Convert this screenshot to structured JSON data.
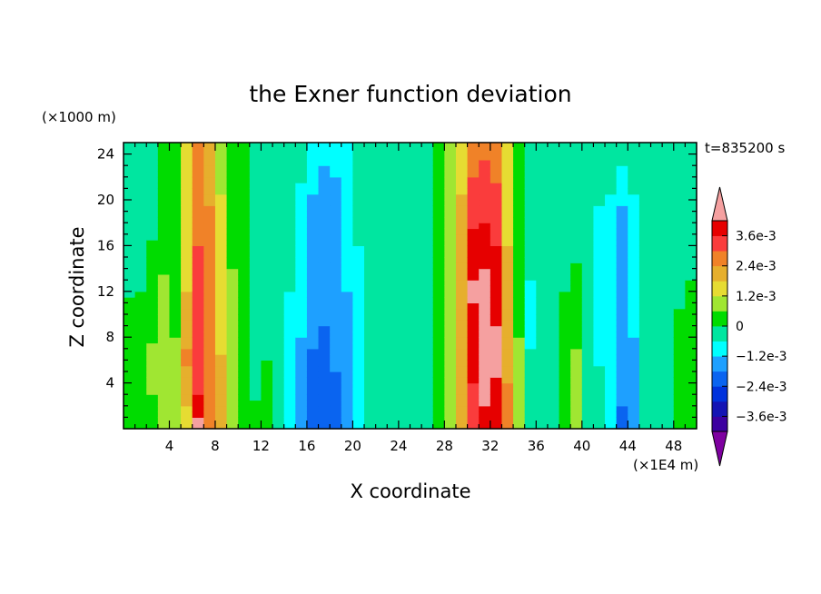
{
  "chart_data": {
    "type": "heatmap",
    "title": "the Exner function deviation",
    "xlabel": "X coordinate",
    "ylabel": "Z coordinate",
    "x_unit": "(×1E4 m)",
    "y_unit": "(×1000 m)",
    "time_label": "t=835200 s",
    "xlim": [
      0,
      50
    ],
    "ylim": [
      0,
      25
    ],
    "x_ticks": [
      "4",
      "8",
      "12",
      "16",
      "20",
      "24",
      "28",
      "32",
      "36",
      "40",
      "44",
      "48"
    ],
    "y_ticks": [
      "4",
      "8",
      "12",
      "16",
      "20",
      "24"
    ],
    "colorbar": {
      "levels": [
        -0.0042,
        -0.0036,
        -0.003,
        -0.0024,
        -0.0018,
        -0.0012,
        -0.0006,
        0,
        0.0006,
        0.0012,
        0.0018,
        0.0024,
        0.003,
        0.0036,
        0.0042
      ],
      "colors": [
        "#7e00a0",
        "#3c00a0",
        "#1414b4",
        "#0032dc",
        "#0a64f0",
        "#1ea0ff",
        "#00ffff",
        "#00e6a0",
        "#00dc00",
        "#a0e632",
        "#e6dc32",
        "#e6af2d",
        "#f08228",
        "#fa3c3c",
        "#e60000",
        "#f5a0a0"
      ],
      "labels": [
        "3.6e-3",
        "2.4e-3",
        "1.2e-3",
        "0",
        "−1.2e-3",
        "−2.4e-3",
        "−3.6e-3"
      ],
      "label_values": [
        0.0036,
        0.0024,
        0.0012,
        0,
        -0.0012,
        -0.0024,
        -0.0036
      ]
    },
    "columns": [
      {
        "x": 0.5,
        "profile": [
          [
            0,
            0.0002
          ],
          [
            4,
            0.0001
          ],
          [
            10,
            0.0001
          ],
          [
            16,
            -0.0003
          ],
          [
            25,
            -0.0002
          ]
        ]
      },
      {
        "x": 1.5,
        "profile": [
          [
            0,
            0.0004
          ],
          [
            8,
            0.0002
          ],
          [
            14,
            -0.0001
          ],
          [
            25,
            -0.0002
          ]
        ]
      },
      {
        "x": 2.5,
        "profile": [
          [
            0,
            0.0005
          ],
          [
            6,
            0.0007
          ],
          [
            12,
            0.0003
          ],
          [
            18,
            -0.0001
          ],
          [
            25,
            -0.0002
          ]
        ]
      },
      {
        "x": 3.5,
        "profile": [
          [
            0,
            0.0006
          ],
          [
            6,
            0.0012
          ],
          [
            12,
            0.0009
          ],
          [
            16,
            0.0
          ],
          [
            25,
            0.0001
          ]
        ]
      },
      {
        "x": 4.5,
        "profile": [
          [
            0,
            0.0008
          ],
          [
            8,
            0.0006
          ],
          [
            16,
            0.0003
          ],
          [
            25,
            0.0003
          ]
        ]
      },
      {
        "x": 5.5,
        "profile": [
          [
            0,
            0.0015
          ],
          [
            6,
            0.0025
          ],
          [
            12,
            0.0018
          ],
          [
            20,
            0.0014
          ],
          [
            25,
            0.0012
          ]
        ]
      },
      {
        "x": 6.5,
        "profile": [
          [
            0,
            0.0044
          ],
          [
            4,
            0.0034
          ],
          [
            8,
            0.0032
          ],
          [
            16,
            0.003
          ],
          [
            25,
            0.0024
          ]
        ]
      },
      {
        "x": 7.5,
        "profile": [
          [
            0,
            0.0026
          ],
          [
            8,
            0.0026
          ],
          [
            16,
            0.0026
          ],
          [
            25,
            0.0021
          ]
        ]
      },
      {
        "x": 8.5,
        "profile": [
          [
            0,
            0.0022
          ],
          [
            8,
            0.0017
          ],
          [
            16,
            0.0014
          ],
          [
            25,
            0.001
          ]
        ]
      },
      {
        "x": 9.5,
        "profile": [
          [
            0,
            0.0012
          ],
          [
            8,
            0.0009
          ],
          [
            16,
            0.0005
          ],
          [
            25,
            0.0004
          ]
        ]
      },
      {
        "x": 10.5,
        "profile": [
          [
            0,
            0.0004
          ],
          [
            8,
            0.0002
          ],
          [
            16,
            0.0
          ],
          [
            25,
            0.0001
          ]
        ]
      },
      {
        "x": 11.5,
        "profile": [
          [
            0,
            0.0001
          ],
          [
            8,
            -0.0002
          ],
          [
            16,
            -0.0004
          ],
          [
            25,
            -0.0003
          ]
        ]
      },
      {
        "x": 12.5,
        "profile": [
          [
            0,
            0.0003
          ],
          [
            6,
            0.0
          ],
          [
            12,
            -0.0005
          ],
          [
            25,
            -0.0004
          ]
        ]
      },
      {
        "x": 13.5,
        "profile": [
          [
            0,
            -0.0002
          ],
          [
            8,
            -0.0004
          ],
          [
            16,
            -0.0005
          ],
          [
            25,
            -0.0004
          ]
        ]
      },
      {
        "x": 14.5,
        "profile": [
          [
            0,
            -0.0006
          ],
          [
            6,
            -0.0009
          ],
          [
            12,
            -0.0006
          ],
          [
            25,
            -0.0005
          ]
        ]
      },
      {
        "x": 15.5,
        "profile": [
          [
            0,
            -0.0014
          ],
          [
            8,
            -0.0012
          ],
          [
            14,
            -0.001
          ],
          [
            18,
            -0.0007
          ],
          [
            25,
            -0.0005
          ]
        ]
      },
      {
        "x": 16.5,
        "profile": [
          [
            0,
            -0.002
          ],
          [
            6,
            -0.0019
          ],
          [
            12,
            -0.0014
          ],
          [
            20,
            -0.0013
          ],
          [
            25,
            -0.0006
          ]
        ]
      },
      {
        "x": 17.5,
        "profile": [
          [
            0,
            -0.0022
          ],
          [
            6,
            -0.0021
          ],
          [
            12,
            -0.0015
          ],
          [
            22,
            -0.0014
          ],
          [
            25,
            -0.0007
          ]
        ]
      },
      {
        "x": 18.5,
        "profile": [
          [
            0,
            -0.0021
          ],
          [
            8,
            -0.0016
          ],
          [
            16,
            -0.0014
          ],
          [
            21,
            -0.0013
          ],
          [
            25,
            -0.0008
          ]
        ]
      },
      {
        "x": 19.5,
        "profile": [
          [
            0,
            -0.0015
          ],
          [
            8,
            -0.0013
          ],
          [
            16,
            -0.0011
          ],
          [
            25,
            -0.0006
          ]
        ]
      },
      {
        "x": 20.5,
        "profile": [
          [
            0,
            -0.0008
          ],
          [
            8,
            -0.0007
          ],
          [
            16,
            -0.0006
          ],
          [
            25,
            -0.0004
          ]
        ]
      },
      {
        "x": 21.5,
        "profile": [
          [
            0,
            -0.0005
          ],
          [
            8,
            -0.0004
          ],
          [
            16,
            -0.0005
          ],
          [
            25,
            -0.0003
          ]
        ]
      },
      {
        "x": 22.5,
        "profile": [
          [
            0,
            -0.0002
          ],
          [
            8,
            -0.0003
          ],
          [
            16,
            -0.0004
          ],
          [
            25,
            -0.0003
          ]
        ]
      },
      {
        "x": 23.5,
        "profile": [
          [
            0,
            -0.0001
          ],
          [
            8,
            -0.0002
          ],
          [
            16,
            -0.0003
          ],
          [
            25,
            -0.0002
          ]
        ]
      },
      {
        "x": 24.5,
        "profile": [
          [
            0,
            -0.0001
          ],
          [
            8,
            -0.0001
          ],
          [
            16,
            -0.0002
          ],
          [
            25,
            -0.0002
          ]
        ]
      },
      {
        "x": 25.5,
        "profile": [
          [
            0,
            -0.0001
          ],
          [
            8,
            -0.0002
          ],
          [
            16,
            -0.0002
          ],
          [
            25,
            -0.0002
          ]
        ]
      },
      {
        "x": 26.5,
        "profile": [
          [
            0,
            -0.0001
          ],
          [
            8,
            -0.0001
          ],
          [
            16,
            -0.0001
          ],
          [
            25,
            -0.0001
          ]
        ]
      },
      {
        "x": 27.5,
        "profile": [
          [
            0,
            0.0002
          ],
          [
            8,
            0.0002
          ],
          [
            16,
            0.0001
          ],
          [
            25,
            0.0001
          ]
        ]
      },
      {
        "x": 28.5,
        "profile": [
          [
            0,
            0.0012
          ],
          [
            8,
            0.0011
          ],
          [
            16,
            0.0008
          ],
          [
            25,
            0.0007
          ]
        ]
      },
      {
        "x": 29.5,
        "profile": [
          [
            0,
            0.0024
          ],
          [
            8,
            0.0022
          ],
          [
            16,
            0.002
          ],
          [
            25,
            0.0016
          ]
        ]
      },
      {
        "x": 30.5,
        "profile": [
          [
            0,
            0.0032
          ],
          [
            6,
            0.0038
          ],
          [
            12,
            0.0043
          ],
          [
            18,
            0.0035
          ],
          [
            25,
            0.0026
          ]
        ]
      },
      {
        "x": 31.5,
        "profile": [
          [
            0,
            0.004
          ],
          [
            6,
            0.0046
          ],
          [
            12,
            0.0045
          ],
          [
            18,
            0.0036
          ],
          [
            25,
            0.0028
          ]
        ]
      },
      {
        "x": 32.5,
        "profile": [
          [
            0,
            0.0036
          ],
          [
            6,
            0.0044
          ],
          [
            12,
            0.004
          ],
          [
            18,
            0.0034
          ],
          [
            25,
            0.0026
          ]
        ]
      },
      {
        "x": 33.5,
        "profile": [
          [
            0,
            0.0026
          ],
          [
            8,
            0.0022
          ],
          [
            16,
            0.0018
          ],
          [
            25,
            0.0015
          ]
        ]
      },
      {
        "x": 34.5,
        "profile": [
          [
            0,
            0.001
          ],
          [
            8,
            0.0006
          ],
          [
            16,
            0.0003
          ],
          [
            25,
            0.0002
          ]
        ]
      },
      {
        "x": 35.5,
        "profile": [
          [
            0,
            -0.0002
          ],
          [
            4,
            -0.0004
          ],
          [
            10,
            -0.0008
          ],
          [
            16,
            -0.0004
          ],
          [
            25,
            -0.0001
          ]
        ]
      },
      {
        "x": 36.5,
        "profile": [
          [
            0,
            -0.0002
          ],
          [
            8,
            -0.0004
          ],
          [
            16,
            -0.0005
          ],
          [
            25,
            -0.0003
          ]
        ]
      },
      {
        "x": 37.5,
        "profile": [
          [
            0,
            -0.0001
          ],
          [
            8,
            -0.0002
          ],
          [
            16,
            -0.0004
          ],
          [
            25,
            -0.0003
          ]
        ]
      },
      {
        "x": 38.5,
        "profile": [
          [
            0,
            0.0002
          ],
          [
            8,
            0.0002
          ],
          [
            16,
            -0.0002
          ],
          [
            25,
            -0.0002
          ]
        ]
      },
      {
        "x": 39.5,
        "profile": [
          [
            0,
            0.0006
          ],
          [
            4,
            0.0007
          ],
          [
            10,
            0.0005
          ],
          [
            16,
            -0.0002
          ],
          [
            25,
            -0.0002
          ]
        ]
      },
      {
        "x": 40.5,
        "profile": [
          [
            0,
            -0.0002
          ],
          [
            8,
            -0.0004
          ],
          [
            16,
            -0.0006
          ],
          [
            25,
            -0.0003
          ]
        ]
      },
      {
        "x": 41.5,
        "profile": [
          [
            0,
            -0.0004
          ],
          [
            8,
            -0.0007
          ],
          [
            16,
            -0.0008
          ],
          [
            25,
            -0.0003
          ]
        ]
      },
      {
        "x": 42.5,
        "profile": [
          [
            0,
            -0.0006
          ],
          [
            8,
            -0.001
          ],
          [
            16,
            -0.0009
          ],
          [
            25,
            -0.0003
          ]
        ]
      },
      {
        "x": 43.5,
        "profile": [
          [
            0,
            -0.0019
          ],
          [
            6,
            -0.0016
          ],
          [
            12,
            -0.0015
          ],
          [
            18,
            -0.0014
          ],
          [
            25,
            -0.0003
          ]
        ]
      },
      {
        "x": 44.5,
        "profile": [
          [
            0,
            -0.0014
          ],
          [
            8,
            -0.0012
          ],
          [
            16,
            -0.001
          ],
          [
            25,
            -0.0002
          ]
        ]
      },
      {
        "x": 45.5,
        "profile": [
          [
            0,
            -0.0004
          ],
          [
            8,
            -0.0004
          ],
          [
            16,
            -0.0005
          ],
          [
            25,
            -0.0002
          ]
        ]
      },
      {
        "x": 46.5,
        "profile": [
          [
            0,
            -0.0001
          ],
          [
            8,
            -0.0002
          ],
          [
            16,
            -0.0002
          ],
          [
            25,
            -0.0002
          ]
        ]
      },
      {
        "x": 47.5,
        "profile": [
          [
            0,
            0.0
          ],
          [
            8,
            -0.0001
          ],
          [
            16,
            -0.0002
          ],
          [
            25,
            -0.0002
          ]
        ]
      },
      {
        "x": 48.5,
        "profile": [
          [
            0,
            0.0002
          ],
          [
            8,
            0.0001
          ],
          [
            16,
            -0.0002
          ],
          [
            25,
            -0.0002
          ]
        ]
      },
      {
        "x": 49.5,
        "profile": [
          [
            0,
            0.0004
          ],
          [
            8,
            0.0003
          ],
          [
            16,
            -0.0002
          ],
          [
            25,
            -0.0002
          ]
        ]
      }
    ]
  }
}
